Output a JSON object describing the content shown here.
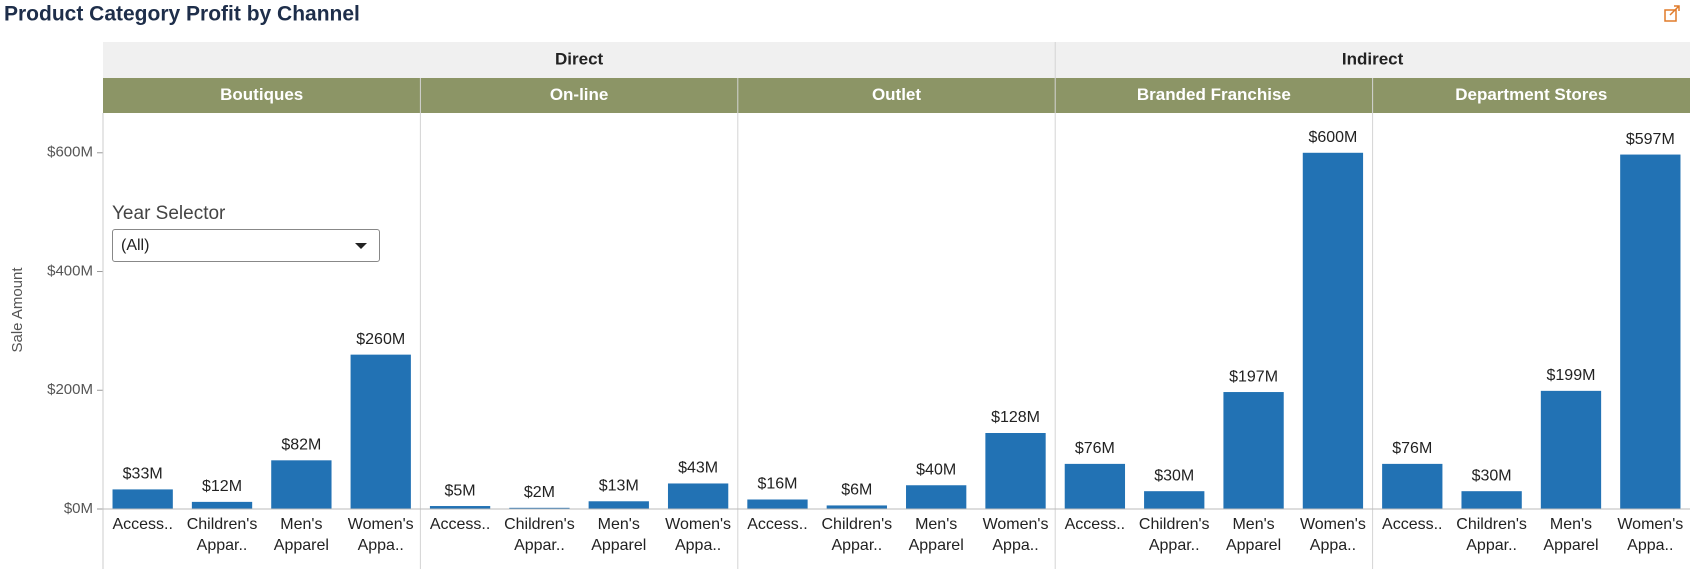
{
  "chart_data": {
    "type": "bar",
    "title": "Product Category Profit by Channel",
    "y_label": "Sale Amount",
    "categories": [
      "Access..",
      "Children's Appar..",
      "Men's Apparel",
      "Women's Appa.."
    ],
    "color": "#2272b4",
    "header_color": "#8c9566",
    "grid": false,
    "ylim": [
      0,
      667
    ],
    "yticks": [
      {
        "value": 0,
        "label": "$0M"
      },
      {
        "value": 200,
        "label": "$200M"
      },
      {
        "value": 400,
        "label": "$400M"
      },
      {
        "value": 600,
        "label": "$600M"
      }
    ],
    "groups": [
      {
        "name": "Direct",
        "series": [
          {
            "name": "Boutiques",
            "values": [
              33,
              12,
              82,
              260
            ],
            "value_labels": [
              "$33M",
              "$12M",
              "$82M",
              "$260M"
            ]
          },
          {
            "name": "On-line",
            "values": [
              5,
              2,
              13,
              43
            ],
            "value_labels": [
              "$5M",
              "$2M",
              "$13M",
              "$43M"
            ]
          },
          {
            "name": "Outlet",
            "values": [
              16,
              6,
              40,
              128
            ],
            "value_labels": [
              "$16M",
              "$6M",
              "$40M",
              "$128M"
            ]
          }
        ]
      },
      {
        "name": "Indirect",
        "series": [
          {
            "name": "Branded Franchise",
            "values": [
              76,
              30,
              197,
              600
            ],
            "value_labels": [
              "$76M",
              "$30M",
              "$197M",
              "$600M"
            ]
          },
          {
            "name": "Department Stores",
            "values": [
              76,
              30,
              199,
              597
            ],
            "value_labels": [
              "$76M",
              "$30M",
              "$199M",
              "$597M"
            ]
          }
        ]
      }
    ],
    "year_selector": {
      "label": "Year Selector",
      "value": "(All)"
    }
  }
}
